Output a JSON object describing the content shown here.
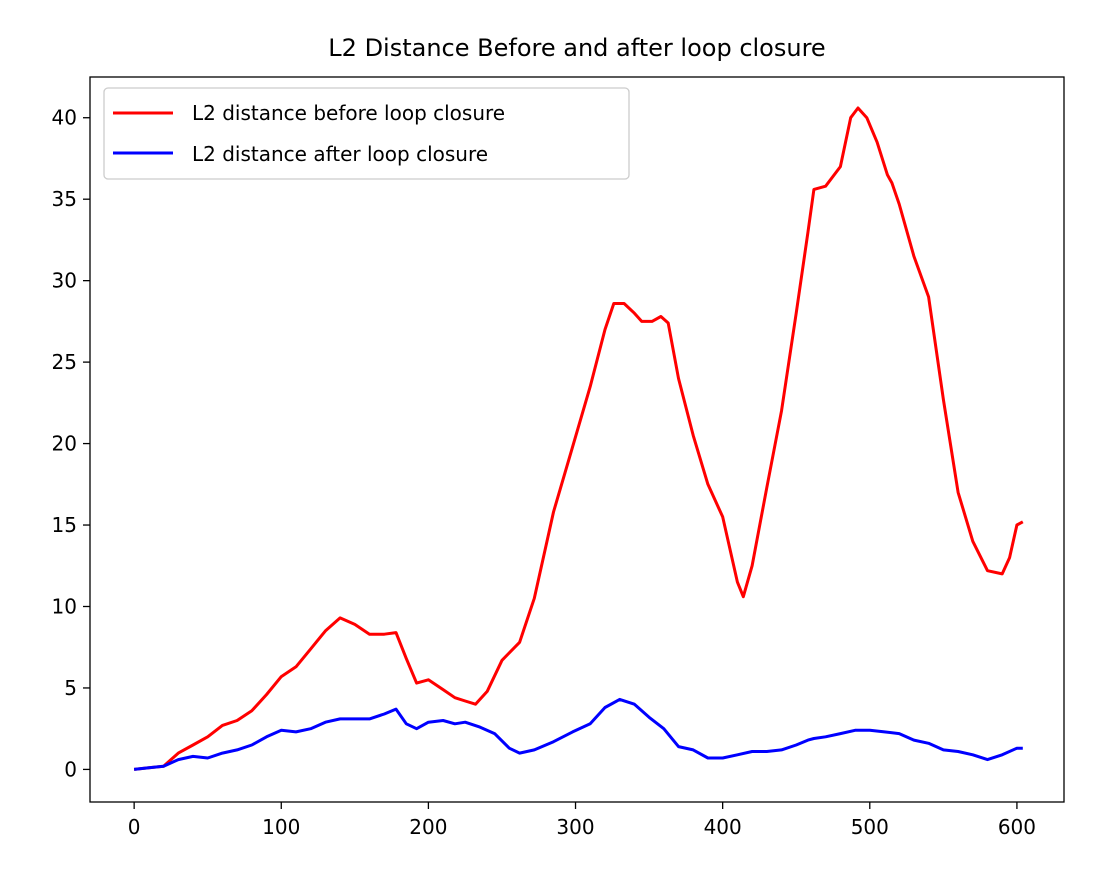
{
  "chart_data": {
    "type": "line",
    "title": "L2 Distance Before and after loop closure",
    "xlabel": "",
    "ylabel": "",
    "xlim": [
      -30,
      632
    ],
    "ylim": [
      -2,
      42.5
    ],
    "xticks": [
      0,
      100,
      200,
      300,
      400,
      500,
      600
    ],
    "yticks": [
      0,
      5,
      10,
      15,
      20,
      25,
      30,
      35,
      40
    ],
    "grid": false,
    "legend_position": "top-left",
    "series": [
      {
        "name": "L2 distance before loop closure",
        "color": "#ff0000",
        "points": [
          [
            0,
            0
          ],
          [
            10,
            0.1
          ],
          [
            20,
            0.2
          ],
          [
            30,
            1.0
          ],
          [
            40,
            1.5
          ],
          [
            50,
            2.0
          ],
          [
            60,
            2.7
          ],
          [
            70,
            3.0
          ],
          [
            80,
            3.6
          ],
          [
            90,
            4.6
          ],
          [
            100,
            5.7
          ],
          [
            110,
            6.3
          ],
          [
            120,
            7.4
          ],
          [
            130,
            8.5
          ],
          [
            140,
            9.3
          ],
          [
            150,
            8.9
          ],
          [
            160,
            8.3
          ],
          [
            170,
            8.3
          ],
          [
            178,
            8.4
          ],
          [
            185,
            6.8
          ],
          [
            192,
            5.3
          ],
          [
            200,
            5.5
          ],
          [
            210,
            4.9
          ],
          [
            218,
            4.4
          ],
          [
            225,
            4.2
          ],
          [
            232,
            4.0
          ],
          [
            240,
            4.8
          ],
          [
            250,
            6.7
          ],
          [
            262,
            7.8
          ],
          [
            272,
            10.5
          ],
          [
            285,
            15.8
          ],
          [
            298,
            19.8
          ],
          [
            310,
            23.5
          ],
          [
            320,
            27.0
          ],
          [
            326,
            28.6
          ],
          [
            333,
            28.6
          ],
          [
            340,
            28.0
          ],
          [
            345,
            27.5
          ],
          [
            352,
            27.5
          ],
          [
            358,
            27.8
          ],
          [
            363,
            27.4
          ],
          [
            370,
            24.0
          ],
          [
            380,
            20.5
          ],
          [
            390,
            17.5
          ],
          [
            400,
            15.5
          ],
          [
            410,
            11.5
          ],
          [
            414,
            10.6
          ],
          [
            420,
            12.5
          ],
          [
            430,
            17.3
          ],
          [
            440,
            22.0
          ],
          [
            450,
            28.0
          ],
          [
            458,
            33.0
          ],
          [
            462,
            35.6
          ],
          [
            470,
            35.8
          ],
          [
            480,
            37.0
          ],
          [
            487,
            40.0
          ],
          [
            492,
            40.6
          ],
          [
            498,
            40.0
          ],
          [
            505,
            38.5
          ],
          [
            512,
            36.5
          ],
          [
            515,
            36.0
          ],
          [
            520,
            34.7
          ],
          [
            530,
            31.5
          ],
          [
            540,
            29.0
          ],
          [
            550,
            22.7
          ],
          [
            560,
            17.0
          ],
          [
            570,
            14.0
          ],
          [
            580,
            12.2
          ],
          [
            590,
            12.0
          ],
          [
            595,
            13.0
          ],
          [
            600,
            15.0
          ],
          [
            604,
            15.2
          ]
        ]
      },
      {
        "name": "L2 distance after loop closure",
        "color": "#0000ff",
        "points": [
          [
            0,
            0
          ],
          [
            10,
            0.1
          ],
          [
            20,
            0.2
          ],
          [
            30,
            0.6
          ],
          [
            40,
            0.8
          ],
          [
            50,
            0.7
          ],
          [
            60,
            1.0
          ],
          [
            70,
            1.2
          ],
          [
            80,
            1.5
          ],
          [
            90,
            2.0
          ],
          [
            100,
            2.4
          ],
          [
            110,
            2.3
          ],
          [
            120,
            2.5
          ],
          [
            130,
            2.9
          ],
          [
            140,
            3.1
          ],
          [
            150,
            3.1
          ],
          [
            160,
            3.1
          ],
          [
            170,
            3.4
          ],
          [
            178,
            3.7
          ],
          [
            185,
            2.8
          ],
          [
            192,
            2.5
          ],
          [
            200,
            2.9
          ],
          [
            210,
            3.0
          ],
          [
            218,
            2.8
          ],
          [
            225,
            2.9
          ],
          [
            235,
            2.6
          ],
          [
            245,
            2.2
          ],
          [
            255,
            1.3
          ],
          [
            262,
            1.0
          ],
          [
            272,
            1.2
          ],
          [
            285,
            1.7
          ],
          [
            298,
            2.3
          ],
          [
            310,
            2.8
          ],
          [
            320,
            3.8
          ],
          [
            330,
            4.3
          ],
          [
            340,
            4.0
          ],
          [
            350,
            3.2
          ],
          [
            360,
            2.5
          ],
          [
            370,
            1.4
          ],
          [
            380,
            1.2
          ],
          [
            390,
            0.7
          ],
          [
            400,
            0.7
          ],
          [
            410,
            0.9
          ],
          [
            420,
            1.1
          ],
          [
            430,
            1.1
          ],
          [
            440,
            1.2
          ],
          [
            450,
            1.5
          ],
          [
            458,
            1.8
          ],
          [
            462,
            1.9
          ],
          [
            470,
            2.0
          ],
          [
            480,
            2.2
          ],
          [
            490,
            2.4
          ],
          [
            500,
            2.4
          ],
          [
            510,
            2.3
          ],
          [
            520,
            2.2
          ],
          [
            530,
            1.8
          ],
          [
            540,
            1.6
          ],
          [
            550,
            1.2
          ],
          [
            560,
            1.1
          ],
          [
            570,
            0.9
          ],
          [
            580,
            0.6
          ],
          [
            590,
            0.9
          ],
          [
            600,
            1.3
          ],
          [
            604,
            1.3
          ]
        ]
      }
    ]
  }
}
